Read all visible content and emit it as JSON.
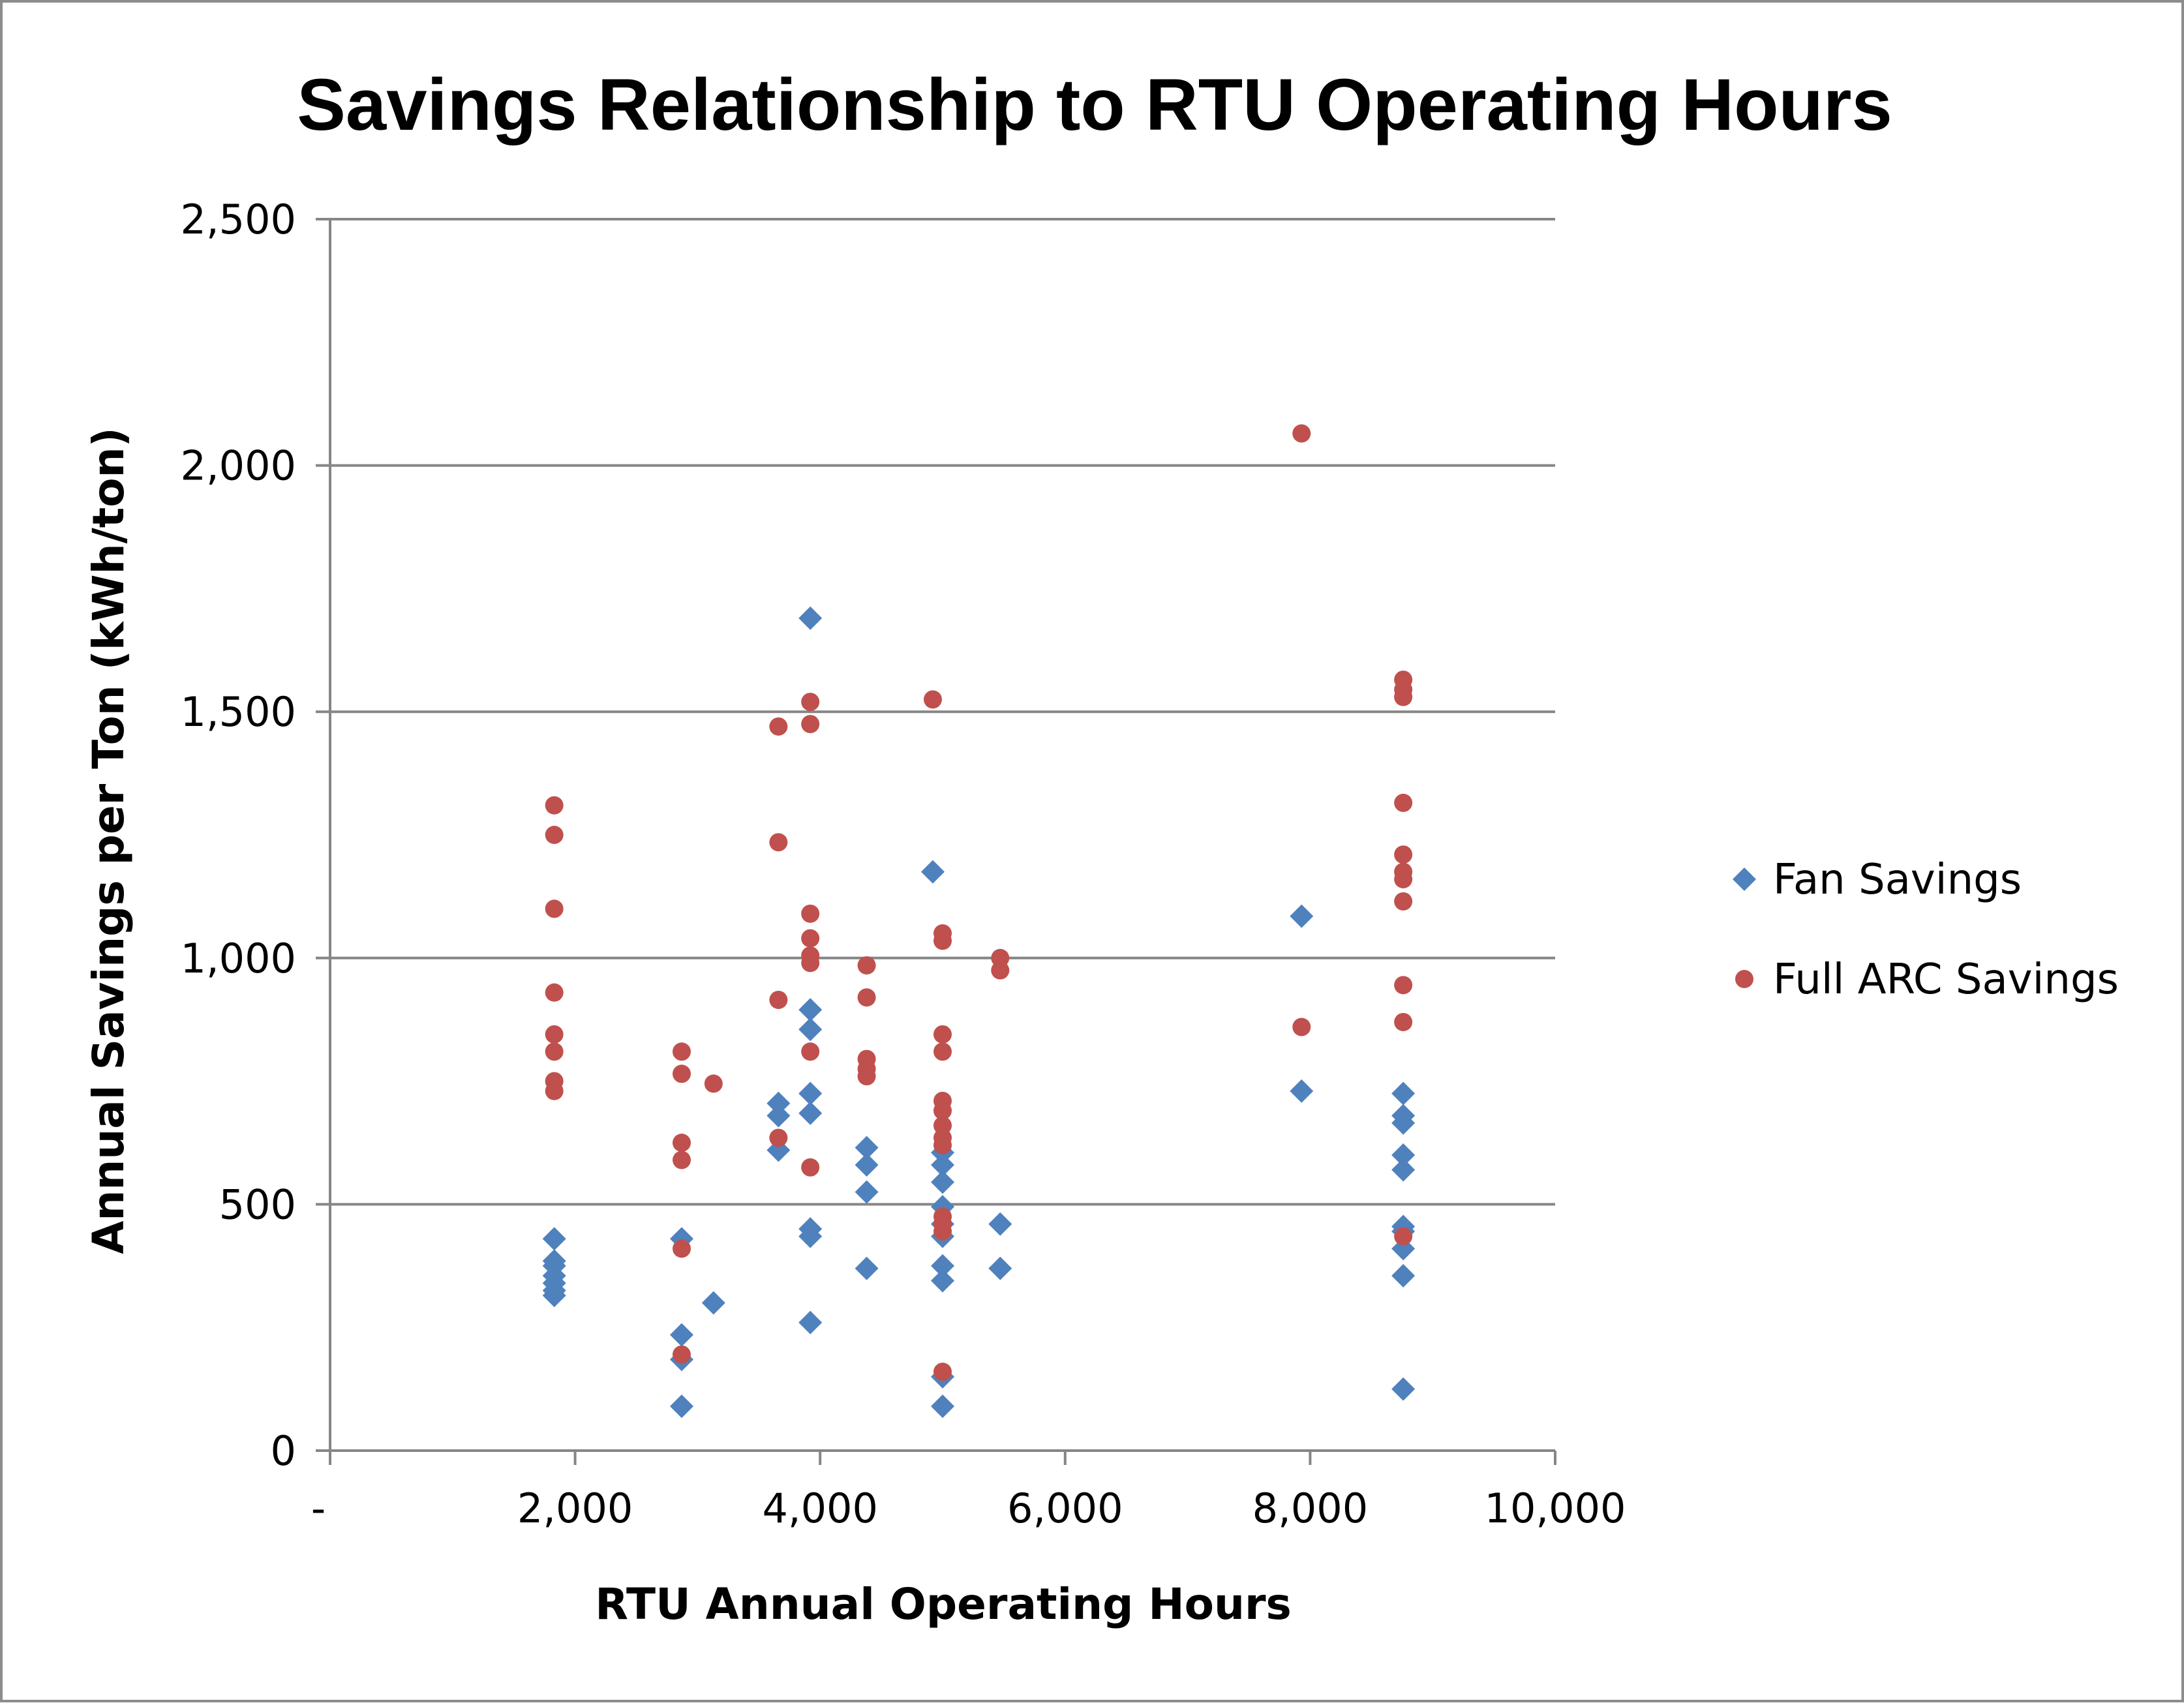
{
  "chart_data": {
    "type": "scatter",
    "title": "Savings Relationship to RTU Operating Hours",
    "xlabel": "RTU Annual Operating Hours",
    "ylabel": "Annual Savings per Ton (kWh/ton)",
    "xlim": [
      0,
      10000
    ],
    "ylim": [
      0,
      2500
    ],
    "x_ticks": [
      {
        "value": 0,
        "label": "-"
      },
      {
        "value": 2000,
        "label": "2,000"
      },
      {
        "value": 4000,
        "label": "4,000"
      },
      {
        "value": 6000,
        "label": "6,000"
      },
      {
        "value": 8000,
        "label": "8,000"
      },
      {
        "value": 10000,
        "label": "10,000"
      }
    ],
    "y_ticks": [
      {
        "value": 0,
        "label": "0"
      },
      {
        "value": 500,
        "label": "500"
      },
      {
        "value": 1000,
        "label": "1,000"
      },
      {
        "value": 1500,
        "label": "1,500"
      },
      {
        "value": 2000,
        "label": "2,000"
      },
      {
        "value": 2500,
        "label": "2,500"
      }
    ],
    "grid": "horizontal",
    "legend_position": "right",
    "series": [
      {
        "name": "Fan Savings",
        "marker": "diamond",
        "color": "#4f81bd",
        "points": [
          [
            1830,
            430
          ],
          [
            1830,
            385
          ],
          [
            1830,
            375
          ],
          [
            1830,
            355
          ],
          [
            1830,
            340
          ],
          [
            1830,
            325
          ],
          [
            1830,
            315
          ],
          [
            2870,
            430
          ],
          [
            2870,
            235
          ],
          [
            2870,
            185
          ],
          [
            2870,
            90
          ],
          [
            3130,
            300
          ],
          [
            3660,
            705
          ],
          [
            3660,
            680
          ],
          [
            3660,
            610
          ],
          [
            3920,
            1690
          ],
          [
            3920,
            895
          ],
          [
            3920,
            855
          ],
          [
            3920,
            725
          ],
          [
            3920,
            685
          ],
          [
            3920,
            450
          ],
          [
            3920,
            435
          ],
          [
            3920,
            260
          ],
          [
            4380,
            615
          ],
          [
            4380,
            580
          ],
          [
            4380,
            525
          ],
          [
            4380,
            370
          ],
          [
            4920,
            1175
          ],
          [
            5000,
            605
          ],
          [
            5000,
            580
          ],
          [
            5000,
            545
          ],
          [
            5000,
            495
          ],
          [
            5000,
            460
          ],
          [
            5000,
            435
          ],
          [
            5000,
            375
          ],
          [
            5000,
            345
          ],
          [
            5000,
            150
          ],
          [
            5000,
            90
          ],
          [
            5470,
            460
          ],
          [
            5470,
            370
          ],
          [
            7930,
            1085
          ],
          [
            7930,
            730
          ],
          [
            8760,
            725
          ],
          [
            8760,
            680
          ],
          [
            8760,
            665
          ],
          [
            8760,
            600
          ],
          [
            8760,
            570
          ],
          [
            8760,
            455
          ],
          [
            8760,
            445
          ],
          [
            8760,
            410
          ],
          [
            8760,
            355
          ],
          [
            8760,
            125
          ]
        ]
      },
      {
        "name": "Full ARC Savings",
        "marker": "circle",
        "color": "#c0504d",
        "points": [
          [
            1830,
            1310
          ],
          [
            1830,
            1250
          ],
          [
            1830,
            1100
          ],
          [
            1830,
            930
          ],
          [
            1830,
            845
          ],
          [
            1830,
            810
          ],
          [
            1830,
            750
          ],
          [
            1830,
            730
          ],
          [
            2870,
            810
          ],
          [
            2870,
            765
          ],
          [
            2870,
            625
          ],
          [
            2870,
            590
          ],
          [
            2870,
            410
          ],
          [
            2870,
            195
          ],
          [
            3130,
            745
          ],
          [
            3660,
            1470
          ],
          [
            3660,
            1235
          ],
          [
            3660,
            915
          ],
          [
            3660,
            635
          ],
          [
            3920,
            1520
          ],
          [
            3920,
            1475
          ],
          [
            3920,
            1090
          ],
          [
            3920,
            1040
          ],
          [
            3920,
            1005
          ],
          [
            3920,
            990
          ],
          [
            3920,
            810
          ],
          [
            3920,
            575
          ],
          [
            4380,
            985
          ],
          [
            4380,
            920
          ],
          [
            4380,
            795
          ],
          [
            4380,
            775
          ],
          [
            4380,
            760
          ],
          [
            4920,
            1525
          ],
          [
            5000,
            1050
          ],
          [
            5000,
            1035
          ],
          [
            5000,
            845
          ],
          [
            5000,
            810
          ],
          [
            5000,
            710
          ],
          [
            5000,
            690
          ],
          [
            5000,
            660
          ],
          [
            5000,
            635
          ],
          [
            5000,
            620
          ],
          [
            5000,
            475
          ],
          [
            5000,
            460
          ],
          [
            5000,
            445
          ],
          [
            5000,
            160
          ],
          [
            5470,
            1000
          ],
          [
            5470,
            975
          ],
          [
            7930,
            2065
          ],
          [
            7930,
            860
          ],
          [
            8760,
            1565
          ],
          [
            8760,
            1545
          ],
          [
            8760,
            1530
          ],
          [
            8760,
            1315
          ],
          [
            8760,
            1210
          ],
          [
            8760,
            1175
          ],
          [
            8760,
            1160
          ],
          [
            8760,
            1115
          ],
          [
            8760,
            945
          ],
          [
            8760,
            870
          ],
          [
            8760,
            435
          ]
        ]
      }
    ]
  }
}
